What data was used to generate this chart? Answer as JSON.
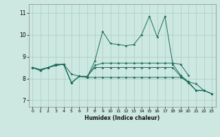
{
  "title": "",
  "xlabel": "Humidex (Indice chaleur)",
  "ylabel": "",
  "background_color": "#cce8e0",
  "grid_color": "#aaccC4",
  "line_color": "#1a6b5a",
  "xlim": [
    -0.5,
    23.5
  ],
  "ylim": [
    6.7,
    11.4
  ],
  "yticks": [
    7,
    8,
    9,
    10,
    11
  ],
  "xticks": [
    0,
    1,
    2,
    3,
    4,
    5,
    6,
    7,
    8,
    9,
    10,
    11,
    12,
    13,
    14,
    15,
    16,
    17,
    18,
    19,
    20,
    21,
    22,
    23
  ],
  "series": [
    [
      8.5,
      8.4,
      8.5,
      8.6,
      8.65,
      7.8,
      8.1,
      8.05,
      8.8,
      10.15,
      9.6,
      9.55,
      9.5,
      9.55,
      10.0,
      10.85,
      9.9,
      10.85,
      8.65,
      8.15,
      7.85,
      7.75,
      7.45,
      7.3
    ],
    [
      8.5,
      8.4,
      8.5,
      8.6,
      8.65,
      7.8,
      8.1,
      8.05,
      8.6,
      8.7,
      8.7,
      8.7,
      8.7,
      8.7,
      8.7,
      8.7,
      8.7,
      8.7,
      8.7,
      8.65,
      8.15,
      null,
      null,
      null
    ],
    [
      8.5,
      8.4,
      8.5,
      8.65,
      8.65,
      8.2,
      8.1,
      8.1,
      8.5,
      8.5,
      8.5,
      8.5,
      8.5,
      8.5,
      8.5,
      8.5,
      8.5,
      8.5,
      8.5,
      8.1,
      7.8,
      7.45,
      7.45,
      7.3
    ],
    [
      8.5,
      8.35,
      8.5,
      8.6,
      8.65,
      7.8,
      8.1,
      8.05,
      8.05,
      8.05,
      8.05,
      8.05,
      8.05,
      8.05,
      8.05,
      8.05,
      8.05,
      8.05,
      8.05,
      8.05,
      7.85,
      7.45,
      7.45,
      7.3
    ]
  ]
}
